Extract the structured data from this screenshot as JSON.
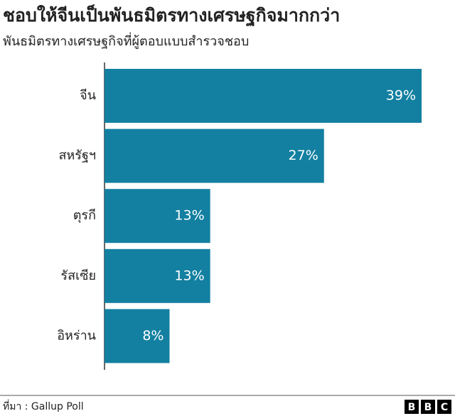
{
  "chart_data": {
    "type": "bar",
    "orientation": "horizontal",
    "title": "ชอบให้จีนเป็นพันธมิตรทางเศรษฐกิจมากกว่า",
    "subtitle": "พันธมิตรทางเศรษฐกิจที่ผู้ตอบแบบสำรวจชอบ",
    "categories": [
      "จีน",
      "สหรัฐฯ",
      "ตุรกี",
      "รัสเซีย",
      "อิหร่าน"
    ],
    "values": [
      39,
      27,
      13,
      13,
      8
    ],
    "value_labels": [
      "39%",
      "27%",
      "13%",
      "13%",
      "8%"
    ],
    "color": "#1380a1",
    "source": "ที่มา : Gallup Poll",
    "logo": [
      "B",
      "B",
      "C"
    ]
  }
}
